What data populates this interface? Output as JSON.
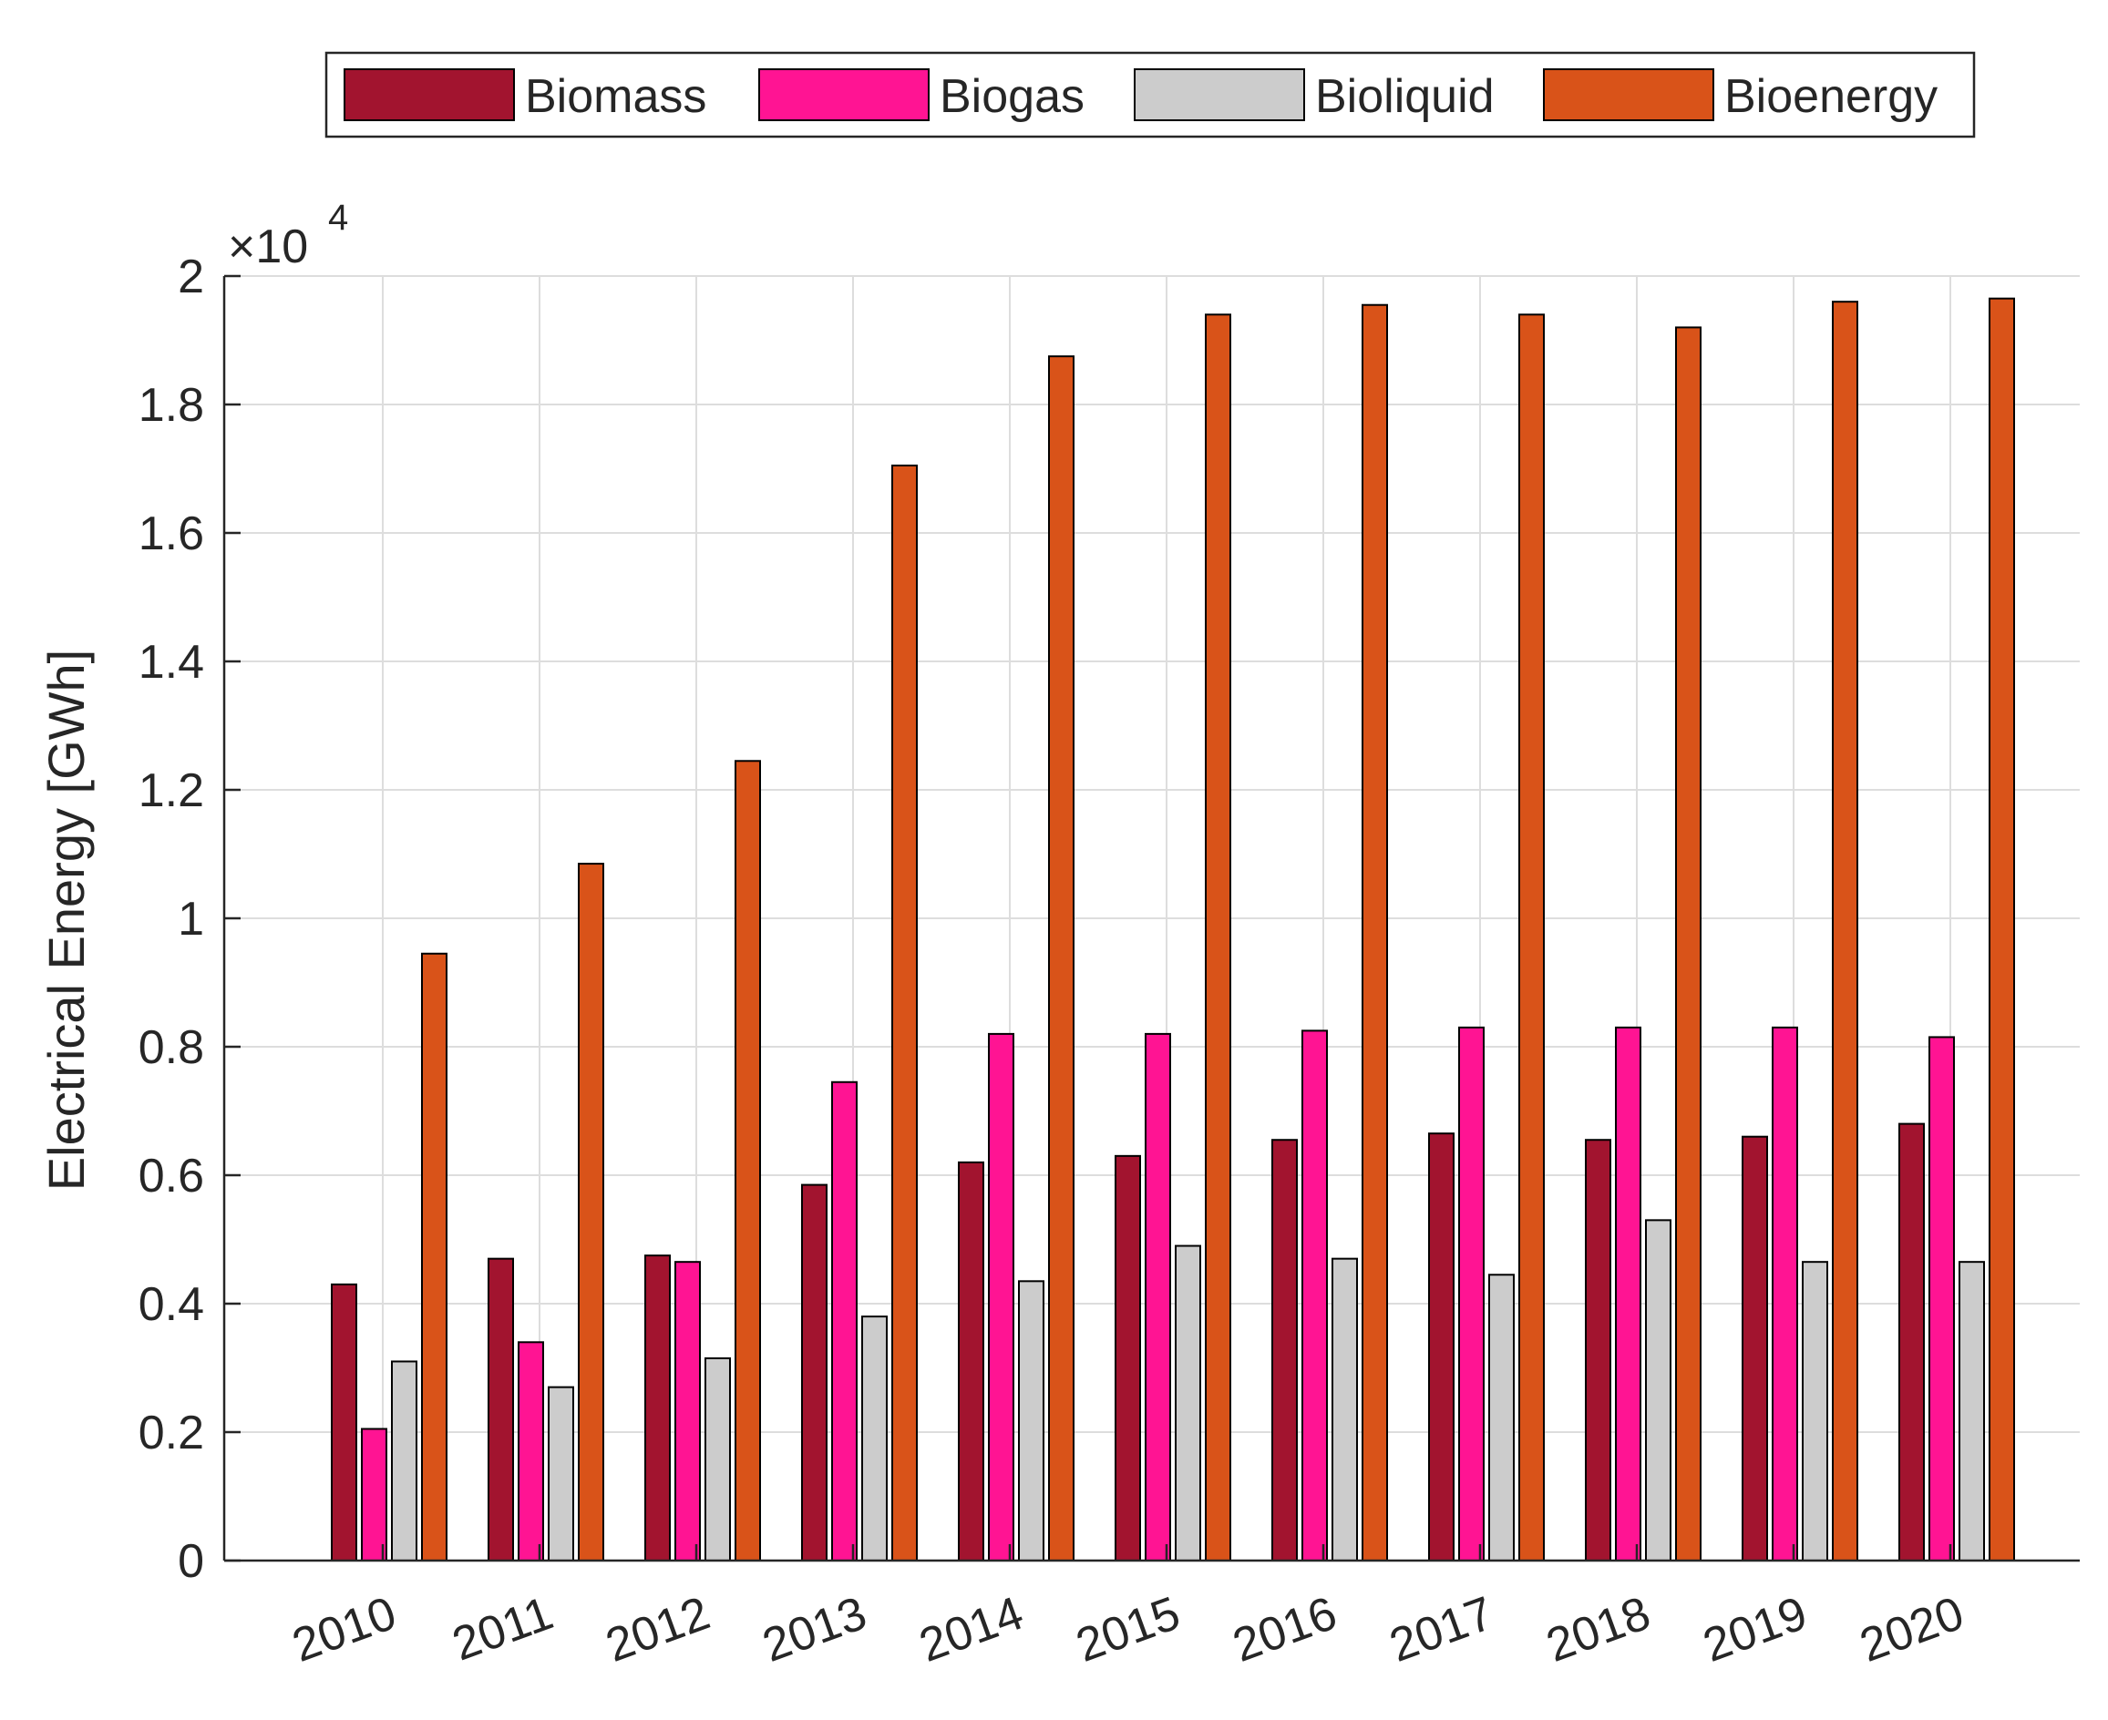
{
  "chart_data": {
    "type": "bar",
    "title": "",
    "xlabel": "",
    "ylabel": "Electrical Energy [GWh]",
    "exponent_label": "×10",
    "exponent_power": "4",
    "ylim": [
      0,
      2
    ],
    "yticks": [
      0,
      0.2,
      0.4,
      0.6,
      0.8,
      1,
      1.2,
      1.4,
      1.6,
      1.8,
      2
    ],
    "ytick_labels": [
      "0",
      "0.2",
      "0.4",
      "0.6",
      "0.8",
      "1",
      "1.2",
      "1.4",
      "1.6",
      "1.8",
      "2"
    ],
    "grid": true,
    "legend_position": "top-center",
    "categories": [
      "2010",
      "2011",
      "2012",
      "2013",
      "2014",
      "2015",
      "2016",
      "2017",
      "2018",
      "2019",
      "2020"
    ],
    "series": [
      {
        "name": "Biomass",
        "color": "#A2142F",
        "values": [
          0.43,
          0.47,
          0.475,
          0.585,
          0.62,
          0.63,
          0.655,
          0.665,
          0.655,
          0.66,
          0.68
        ]
      },
      {
        "name": "Biogas",
        "color": "#FF1493",
        "values": [
          0.205,
          0.34,
          0.465,
          0.745,
          0.82,
          0.82,
          0.825,
          0.83,
          0.83,
          0.83,
          0.815
        ]
      },
      {
        "name": "Bioliquid",
        "color": "#CCCCCC",
        "values": [
          0.31,
          0.27,
          0.315,
          0.38,
          0.435,
          0.49,
          0.47,
          0.445,
          0.53,
          0.465,
          0.465
        ]
      },
      {
        "name": "Bioenergy",
        "color": "#D95319",
        "values": [
          0.945,
          1.085,
          1.245,
          1.705,
          1.875,
          1.94,
          1.955,
          1.94,
          1.92,
          1.96,
          1.965
        ]
      }
    ]
  }
}
